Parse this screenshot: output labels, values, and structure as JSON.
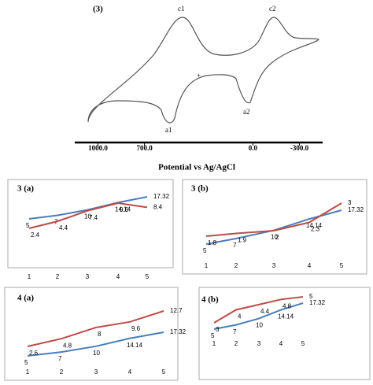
{
  "cv": {
    "label": "(3)",
    "peaks": [
      "c1",
      "c2",
      "a1",
      "a2"
    ],
    "marker": "+"
  },
  "chart_data": [
    {
      "type": "axis",
      "xlabel": "Potential vs Ag/AgCl",
      "xlim": [
        1150,
        -450
      ],
      "xticks": [
        {
          "value": 1000,
          "label": "1000.0"
        },
        {
          "value": 700,
          "label": "700.0"
        },
        {
          "value": 0,
          "label": "0.0"
        },
        {
          "value": -300,
          "label": "-300.0"
        }
      ]
    },
    {
      "type": "line",
      "title": "3 (a)",
      "categories": [
        "1",
        "2",
        "3",
        "4",
        "5"
      ],
      "series": [
        {
          "color": "#4a7ebb",
          "values": [
            5,
            7,
            10,
            14.14,
            17.32
          ]
        },
        {
          "color": "#be4b48",
          "values": [
            2.4,
            4.4,
            7.4,
            9.6,
            8.4
          ]
        }
      ]
    },
    {
      "type": "line",
      "title": "3 (b)",
      "categories": [
        "1",
        "2",
        "3",
        "4",
        "5"
      ],
      "series": [
        {
          "color": "#4a7ebb",
          "values": [
            5,
            7,
            10,
            14.14,
            17.32
          ]
        },
        {
          "color": "#be4b48",
          "values": [
            1.8,
            1.9,
            2,
            2.3,
            3
          ]
        }
      ]
    },
    {
      "type": "line",
      "title": "4  (a)",
      "categories": [
        "1",
        "2",
        "3",
        "4",
        "5"
      ],
      "series": [
        {
          "color": "#4a7ebb",
          "values": [
            5,
            7,
            10,
            14.14,
            17.32
          ]
        },
        {
          "color": "#be4b48",
          "values": [
            2.6,
            4.8,
            8,
            9.6,
            12.7
          ]
        }
      ]
    },
    {
      "type": "line",
      "title": "4 (b)",
      "categories": [
        "1",
        "2",
        "3",
        "4",
        "5"
      ],
      "series": [
        {
          "color": "#4a7ebb",
          "values": [
            5,
            7,
            10,
            14.14,
            17.32
          ]
        },
        {
          "color": "#be4b48",
          "values": [
            3,
            4,
            4.4,
            4.8,
            5
          ]
        }
      ]
    }
  ]
}
